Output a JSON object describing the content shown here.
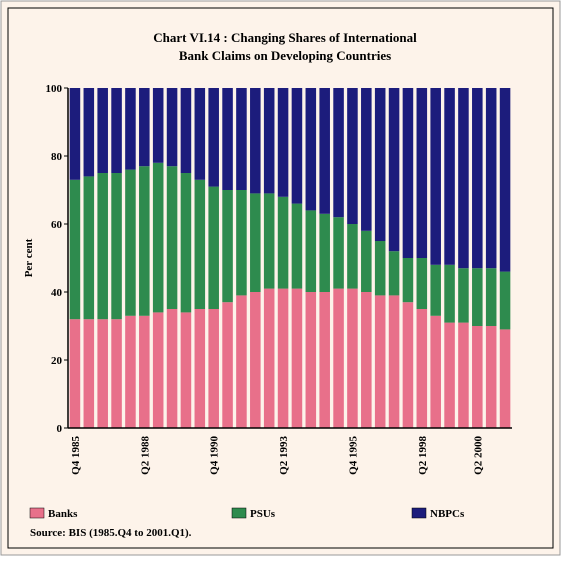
{
  "chart_data": {
    "type": "stacked_bar",
    "title": "Chart VI.14 : Changing Shares of International",
    "subtitle": "Bank Claims on Developing Countries",
    "ylabel": "Per cent",
    "source": "Source: BIS (1985.Q4 to 2001.Q1).",
    "categories": [
      "Q4 1985",
      null,
      null,
      null,
      null,
      "Q2 1988",
      null,
      null,
      null,
      null,
      "Q4 1990",
      null,
      null,
      null,
      null,
      "Q2 1993",
      null,
      null,
      null,
      null,
      "Q4 1995",
      null,
      null,
      null,
      null,
      "Q2 1998",
      null,
      null,
      null,
      "Q2 2000",
      null,
      null
    ],
    "series": [
      {
        "name": "Banks",
        "color": "#e8708a",
        "values": [
          32,
          32,
          32,
          32,
          33,
          33,
          34,
          35,
          34,
          35,
          35,
          37,
          39,
          40,
          41,
          41,
          41,
          40,
          40,
          41,
          41,
          40,
          39,
          39,
          37,
          35,
          33,
          31,
          31,
          30,
          30,
          29
        ]
      },
      {
        "name": "PSUs",
        "color": "#2e8b4e",
        "values": [
          41,
          42,
          43,
          43,
          43,
          44,
          44,
          42,
          41,
          38,
          36,
          33,
          31,
          29,
          28,
          27,
          25,
          24,
          23,
          21,
          19,
          18,
          16,
          13,
          13,
          15,
          15,
          17,
          16,
          17,
          17,
          17
        ]
      },
      {
        "name": "NBPCs",
        "color": "#1c1c7c",
        "values": [
          27,
          26,
          25,
          25,
          24,
          23,
          22,
          23,
          25,
          27,
          29,
          30,
          30,
          31,
          31,
          32,
          34,
          36,
          37,
          38,
          40,
          42,
          45,
          48,
          50,
          50,
          52,
          52,
          53,
          53,
          53,
          54
        ]
      }
    ],
    "ylim": [
      0,
      100
    ],
    "yticks": [
      0,
      20,
      40,
      60,
      80,
      100
    ]
  }
}
